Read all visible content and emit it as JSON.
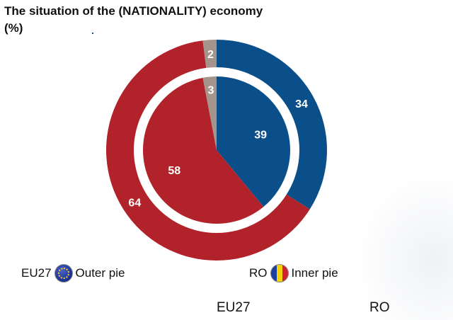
{
  "title_line1": "The situation of the (NATIONALITY) economy",
  "title_line2": "(%)",
  "chart_data": {
    "type": "pie",
    "outer": {
      "name": "EU27",
      "slices": [
        {
          "value": 34,
          "color": "#0a4f8a"
        },
        {
          "value": 64,
          "color": "#b2222a"
        },
        {
          "value": 2,
          "color": "#a5948b"
        }
      ]
    },
    "inner": {
      "name": "RO",
      "slices": [
        {
          "value": 39,
          "color": "#0a4f8a"
        },
        {
          "value": 58,
          "color": "#b2222a"
        },
        {
          "value": 3,
          "color": "#a5948b"
        }
      ]
    }
  },
  "legend": {
    "eu_code": "EU27",
    "eu_text": "Outer pie",
    "eu_icon": "eu-flag-icon",
    "ro_code": "RO",
    "ro_text": "Inner pie",
    "ro_icon": "romania-flag-icon"
  },
  "bottom": {
    "left": "EU27",
    "right": "RO"
  }
}
